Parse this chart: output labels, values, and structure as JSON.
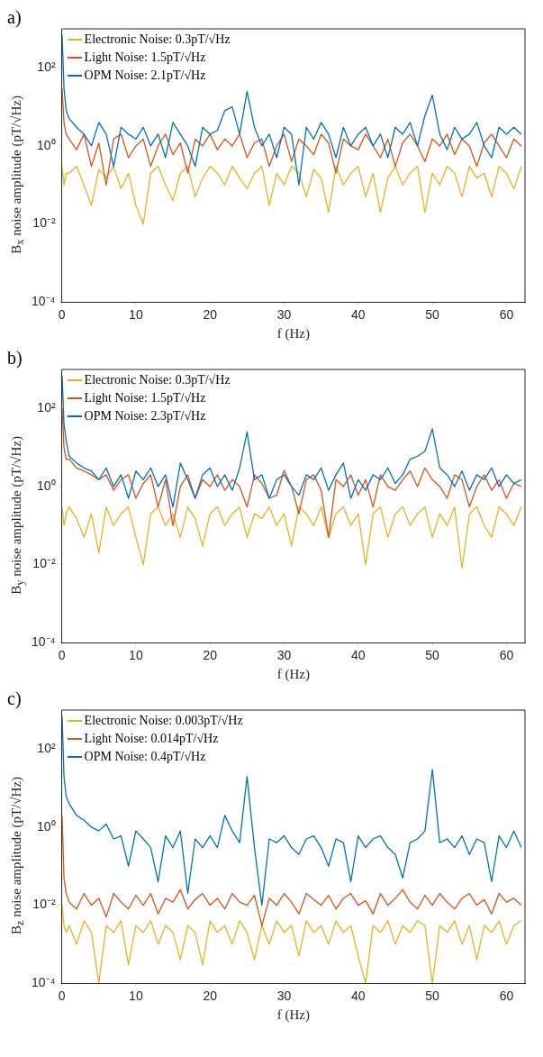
{
  "chart_data": [
    {
      "type": "line",
      "title": "a)",
      "xlabel": "f (Hz)",
      "ylabel": "B$_{x}$ noise amplitude (pT/√Hz)",
      "log": "y",
      "marker": "none",
      "legend": "top left",
      "xlim": [
        0,
        62.5
      ],
      "xticks": [
        0,
        10,
        20,
        30,
        40,
        50,
        60
      ],
      "ylim": [
        0.0001,
        1000
      ],
      "yticks": [
        {
          "value": 0.0001,
          "label": "10⁻⁴"
        },
        {
          "value": 0.01,
          "label": "10⁻²"
        },
        {
          "value": 1,
          "label": "10⁰"
        },
        {
          "value": 100,
          "label": "10²"
        }
      ],
      "x": [
        0.05,
        0.3,
        0.6,
        1,
        2,
        3,
        4,
        5,
        6,
        7,
        8,
        9,
        10,
        11,
        12,
        13,
        14,
        15,
        16,
        17,
        18,
        19,
        20,
        21,
        22,
        23,
        24,
        25,
        26,
        27,
        28,
        29,
        30,
        31,
        32,
        33,
        34,
        35,
        36,
        37,
        38,
        39,
        40,
        41,
        42,
        43,
        44,
        45,
        46,
        47,
        48,
        49,
        50,
        51,
        52,
        53,
        54,
        55,
        56,
        57,
        58,
        59,
        60,
        61,
        62
      ],
      "series": [
        {
          "name": "Electronic Noise: 0.3pT/√Hz",
          "color": "#edb120",
          "values": [
            0.3,
            0.1,
            0.2,
            0.2,
            0.3,
            0.1,
            0.03,
            0.25,
            0.15,
            0.3,
            0.08,
            0.2,
            0.03,
            0.01,
            0.2,
            0.3,
            0.1,
            0.04,
            0.2,
            0.3,
            0.05,
            0.15,
            0.3,
            0.2,
            0.1,
            0.3,
            0.15,
            0.08,
            0.2,
            0.3,
            0.03,
            0.2,
            0.1,
            0.3,
            0.2,
            0.05,
            0.25,
            0.15,
            0.02,
            0.3,
            0.1,
            0.2,
            0.3,
            0.05,
            0.2,
            0.02,
            0.15,
            0.3,
            0.1,
            0.2,
            0.3,
            0.02,
            0.2,
            0.1,
            0.3,
            0.2,
            0.05,
            0.3,
            0.15,
            0.2,
            0.05,
            0.3,
            0.2,
            0.08,
            0.3
          ]
        },
        {
          "name": "Light Noise: 1.5pT/√Hz",
          "color": "#d95319",
          "values": [
            30,
            4,
            2,
            1.5,
            0.8,
            2,
            0.3,
            1.2,
            0.1,
            1.5,
            2,
            0.5,
            1,
            1.5,
            0.3,
            1,
            2,
            0.6,
            1.2,
            0.2,
            1.5,
            1,
            2,
            0.8,
            1.5,
            1,
            2,
            0.5,
            1.2,
            1.5,
            0.3,
            1,
            2,
            0.4,
            1.5,
            1,
            0.6,
            2,
            1.2,
            0.2,
            1.5,
            1,
            0.8,
            2,
            1,
            0.5,
            1.5,
            0.3,
            1.2,
            2,
            1,
            0.4,
            1.5,
            1,
            2,
            0.6,
            1.5,
            1,
            0.3,
            1.2,
            2,
            1,
            0.5,
            1.5,
            1
          ]
        },
        {
          "name": "OPM Noise: 2.1pT/√Hz",
          "color": "#0072bd",
          "values": [
            700,
            30,
            8,
            5,
            3,
            2,
            1,
            4,
            2,
            0.3,
            3,
            2,
            1.5,
            3,
            1,
            2,
            0.5,
            4,
            2,
            1,
            0.3,
            3,
            2,
            2.5,
            8,
            10,
            2,
            25,
            3,
            1,
            2,
            0.5,
            3,
            2,
            0.1,
            3,
            1.5,
            4,
            2,
            0.5,
            3,
            1,
            2,
            3,
            1,
            2,
            0.5,
            3,
            2,
            4,
            1,
            6,
            20,
            2,
            0.8,
            3,
            1.5,
            2,
            4,
            1,
            0.5,
            3,
            2,
            3,
            2
          ]
        }
      ]
    },
    {
      "type": "line",
      "title": "b)",
      "xlabel": "f (Hz)",
      "ylabel": "B$_{y}$ noise amplitude (pT/√Hz)",
      "log": "y",
      "marker": "none",
      "legend": "top left",
      "xlim": [
        0,
        62.5
      ],
      "xticks": [
        0,
        10,
        20,
        30,
        40,
        50,
        60
      ],
      "ylim": [
        0.0001,
        1000
      ],
      "yticks": [
        {
          "value": 0.0001,
          "label": "10⁻⁴"
        },
        {
          "value": 0.01,
          "label": "10⁻²"
        },
        {
          "value": 1,
          "label": "10⁰"
        },
        {
          "value": 100,
          "label": "10²"
        }
      ],
      "x": [
        0.05,
        0.3,
        0.6,
        1,
        2,
        3,
        4,
        5,
        6,
        7,
        8,
        9,
        10,
        11,
        12,
        13,
        14,
        15,
        16,
        17,
        18,
        19,
        20,
        21,
        22,
        23,
        24,
        25,
        26,
        27,
        28,
        29,
        30,
        31,
        32,
        33,
        34,
        35,
        36,
        37,
        38,
        39,
        40,
        41,
        42,
        43,
        44,
        45,
        46,
        47,
        48,
        49,
        50,
        51,
        52,
        53,
        54,
        55,
        56,
        57,
        58,
        59,
        60,
        61,
        62
      ],
      "series": [
        {
          "name": "Electronic Noise: 0.3pT/√Hz",
          "color": "#edb120",
          "values": [
            0.3,
            0.1,
            0.2,
            0.3,
            0.15,
            0.05,
            0.2,
            0.02,
            0.3,
            0.1,
            0.2,
            0.3,
            0.05,
            0.01,
            0.2,
            0.3,
            0.1,
            0.2,
            0.05,
            0.3,
            0.15,
            0.03,
            0.2,
            0.3,
            0.1,
            0.2,
            0.3,
            0.05,
            0.2,
            0.15,
            0.3,
            0.1,
            0.2,
            0.03,
            0.3,
            0.2,
            0.1,
            0.3,
            0.05,
            0.2,
            0.3,
            0.1,
            0.2,
            0.01,
            0.2,
            0.3,
            0.05,
            0.2,
            0.3,
            0.1,
            0.2,
            0.3,
            0.05,
            0.2,
            0.1,
            0.3,
            0.008,
            0.2,
            0.3,
            0.1,
            0.05,
            0.3,
            0.2,
            0.1,
            0.3
          ]
        },
        {
          "name": "Light Noise: 1.5pT/√Hz",
          "color": "#d95319",
          "values": [
            100,
            10,
            5,
            5,
            3,
            2.5,
            2,
            1.5,
            2,
            0.8,
            1.5,
            2,
            0.5,
            1.2,
            2,
            0.3,
            1.5,
            0.1,
            1,
            2,
            0.5,
            1.5,
            1,
            2,
            0.8,
            1.5,
            1,
            0.3,
            2,
            1.2,
            0.5,
            0.6,
            2.6,
            1,
            0.2,
            1.5,
            2,
            0.8,
            0.05,
            1.5,
            1,
            2,
            0.6,
            1.5,
            0.3,
            2,
            1,
            0.8,
            1.5,
            2.5,
            1,
            3,
            1.5,
            1,
            0.5,
            2,
            1.5,
            0.3,
            1,
            2,
            0.8,
            1.5,
            0.5,
            1.2,
            1
          ]
        },
        {
          "name": "OPM Noise: 2.3pT/√Hz",
          "color": "#0072bd",
          "values": [
            700,
            40,
            15,
            6,
            4,
            3,
            2.5,
            1.5,
            3,
            1,
            2,
            0.5,
            2.5,
            1.5,
            3,
            1,
            2,
            0.3,
            4,
            1.5,
            0.5,
            2,
            3,
            1,
            2,
            0.8,
            3,
            25,
            1.5,
            2,
            0.5,
            1.5,
            2,
            1,
            0.6,
            2,
            1.5,
            3,
            0.8,
            2,
            4,
            0.5,
            1.5,
            0.8,
            2,
            1.5,
            3,
            1.2,
            2,
            5,
            6,
            8,
            30,
            3,
            2,
            1,
            2.5,
            0.8,
            2,
            1.5,
            3,
            1,
            2,
            1.2,
            1.5
          ]
        }
      ]
    },
    {
      "type": "line",
      "title": "c)",
      "xlabel": "f (Hz)",
      "ylabel": "B$_{z}$ noise amplitude (pT/√Hz)",
      "log": "y",
      "marker": "none",
      "legend": "top left",
      "xlim": [
        0,
        62.5
      ],
      "xticks": [
        0,
        10,
        20,
        30,
        40,
        50,
        60
      ],
      "ylim": [
        0.0001,
        1000
      ],
      "yticks": [
        {
          "value": 0.0001,
          "label": "10⁻⁴"
        },
        {
          "value": 0.01,
          "label": "10⁻²"
        },
        {
          "value": 1,
          "label": "10⁰"
        },
        {
          "value": 100,
          "label": "10²"
        }
      ],
      "x": [
        0.05,
        0.3,
        0.6,
        1,
        2,
        3,
        4,
        5,
        6,
        7,
        8,
        9,
        10,
        11,
        12,
        13,
        14,
        15,
        16,
        17,
        18,
        19,
        20,
        21,
        22,
        23,
        24,
        25,
        26,
        27,
        28,
        29,
        30,
        31,
        32,
        33,
        34,
        35,
        36,
        37,
        38,
        39,
        40,
        41,
        42,
        43,
        44,
        45,
        46,
        47,
        48,
        49,
        50,
        51,
        52,
        53,
        54,
        55,
        56,
        57,
        58,
        59,
        60,
        61,
        62
      ],
      "series": [
        {
          "name": "Electronic Noise: 0.003pT/√Hz",
          "color": "#edb120",
          "values": [
            0.01,
            0.003,
            0.002,
            0.003,
            0.001,
            0.004,
            0.002,
            0.0001,
            0.003,
            0.002,
            0.004,
            0.0003,
            0.003,
            0.002,
            0.004,
            0.001,
            0.003,
            0.002,
            0.0004,
            0.003,
            0.002,
            0.0003,
            0.004,
            0.002,
            0.003,
            0.001,
            0.004,
            0.002,
            0.0004,
            0.003,
            0.001,
            0.004,
            0.002,
            0.003,
            0.0005,
            0.004,
            0.002,
            0.003,
            0.001,
            0.004,
            0.002,
            0.003,
            0.0005,
            0.0001,
            0.003,
            0.002,
            0.004,
            0.001,
            0.003,
            0.002,
            0.004,
            0.003,
            0.0001,
            0.003,
            0.002,
            0.004,
            0.001,
            0.003,
            0.0004,
            0.003,
            0.002,
            0.004,
            0.001,
            0.003,
            0.004
          ]
        },
        {
          "name": "Light Noise: 0.014pT/√Hz",
          "color": "#d95319",
          "values": [
            2,
            0.05,
            0.02,
            0.012,
            0.008,
            0.02,
            0.01,
            0.015,
            0.005,
            0.02,
            0.012,
            0.008,
            0.018,
            0.01,
            0.02,
            0.006,
            0.015,
            0.012,
            0.025,
            0.008,
            0.014,
            0.02,
            0.01,
            0.015,
            0.008,
            0.02,
            0.012,
            0.01,
            0.018,
            0.003,
            0.015,
            0.01,
            0.02,
            0.012,
            0.006,
            0.02,
            0.014,
            0.01,
            0.018,
            0.008,
            0.015,
            0.02,
            0.01,
            0.013,
            0.006,
            0.02,
            0.01,
            0.015,
            0.025,
            0.012,
            0.008,
            0.018,
            0.01,
            0.02,
            0.012,
            0.008,
            0.015,
            0.02,
            0.01,
            0.014,
            0.006,
            0.02,
            0.012,
            0.015,
            0.01
          ]
        },
        {
          "name": "OPM Noise: 0.4pT/√Hz",
          "color": "#0072bd",
          "values": [
            700,
            20,
            6,
            4,
            2,
            1.5,
            1,
            0.8,
            1.2,
            0.5,
            0.6,
            0.1,
            0.8,
            0.5,
            0.3,
            0.04,
            0.6,
            0.3,
            0.8,
            0.02,
            0.5,
            0.3,
            0.6,
            0.3,
            2,
            0.8,
            0.4,
            20,
            0.3,
            0.01,
            0.5,
            0.4,
            0.6,
            0.3,
            0.2,
            0.5,
            0.6,
            0.3,
            0.1,
            0.5,
            0.4,
            0.04,
            0.6,
            0.3,
            0.5,
            0.6,
            0.3,
            0.2,
            0.05,
            0.4,
            0.5,
            0.8,
            30,
            0.4,
            0.5,
            0.3,
            0.6,
            0.2,
            0.5,
            0.4,
            0.04,
            0.6,
            0.3,
            0.8,
            0.3
          ]
        }
      ]
    }
  ]
}
